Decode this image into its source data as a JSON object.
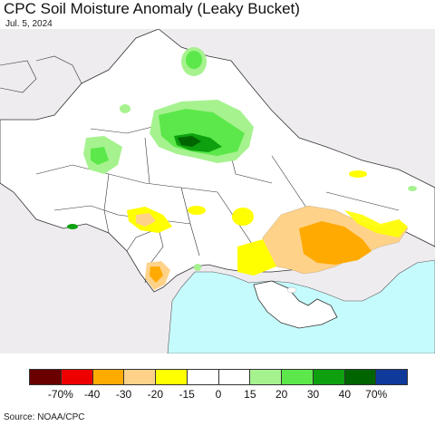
{
  "title": "CPC Soil Moisture Anomaly (Leaky Bucket)",
  "date": "Jul. 5, 2024",
  "source": "Source: NOAA/CPC",
  "colors": {
    "land": "#ffffff",
    "outside_land": "#efecf0",
    "sea": "#c6fbfd",
    "border": "#333333"
  },
  "legend": {
    "colors": [
      "#6b0000",
      "#ee0000",
      "#ffaa00",
      "#ffd28a",
      "#ffff00",
      "#ffffff",
      "#ffffff",
      "#a6f28f",
      "#5ce84a",
      "#0ea00e",
      "#006400",
      "#0f3a9c"
    ],
    "labels": [
      "-70%",
      "-40",
      "-30",
      "-20",
      "-15",
      "0",
      "15",
      "20",
      "30",
      "40",
      "70%"
    ]
  }
}
